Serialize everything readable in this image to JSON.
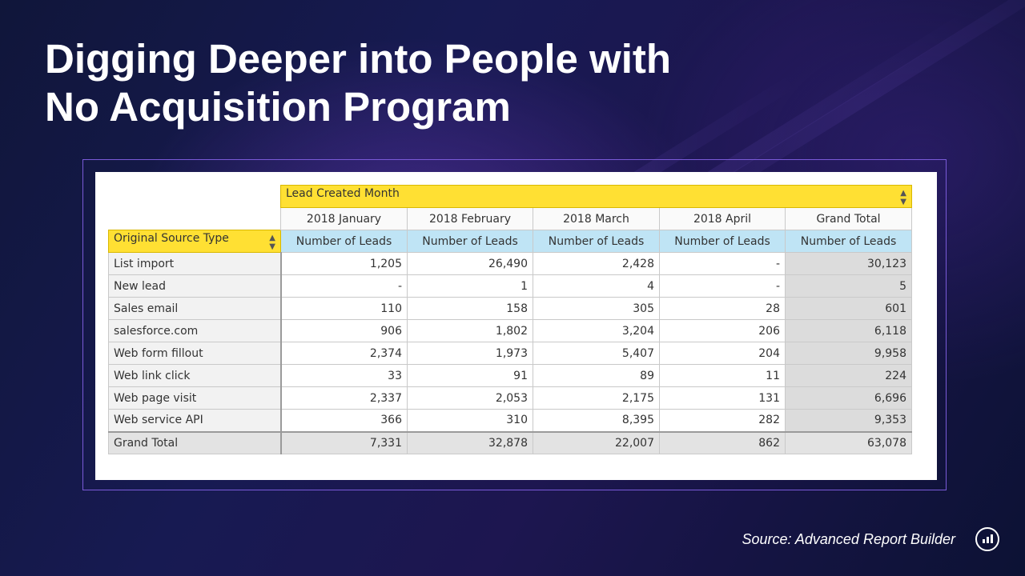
{
  "slide": {
    "title_line1": "Digging Deeper into People with",
    "title_line2": "No Acquisition Program",
    "source": "Source:  Advanced Report Builder"
  },
  "pivot": {
    "column_group_header": "Lead Created Month",
    "row_header": "Original Source Type",
    "columns": [
      "2018 January",
      "2018 February",
      "2018 March",
      "2018 April",
      "Grand Total"
    ],
    "measure": "Number of Leads",
    "rows": [
      {
        "label": "List import",
        "values": [
          "1,205",
          "26,490",
          "2,428",
          "-",
          "30,123"
        ]
      },
      {
        "label": "New lead",
        "values": [
          "-",
          "1",
          "4",
          "-",
          "5"
        ]
      },
      {
        "label": "Sales email",
        "values": [
          "110",
          "158",
          "305",
          "28",
          "601"
        ]
      },
      {
        "label": "salesforce.com",
        "values": [
          "906",
          "1,802",
          "3,204",
          "206",
          "6,118"
        ]
      },
      {
        "label": "Web form fillout",
        "values": [
          "2,374",
          "1,973",
          "5,407",
          "204",
          "9,958"
        ]
      },
      {
        "label": "Web link click",
        "values": [
          "33",
          "91",
          "89",
          "11",
          "224"
        ]
      },
      {
        "label": "Web page visit",
        "values": [
          "2,337",
          "2,053",
          "2,175",
          "131",
          "6,696"
        ]
      },
      {
        "label": "Web service API",
        "values": [
          "366",
          "310",
          "8,395",
          "282",
          "9,353"
        ]
      }
    ],
    "total_row": {
      "label": "Grand Total",
      "values": [
        "7,331",
        "32,878",
        "22,007",
        "862",
        "63,078"
      ]
    }
  },
  "icons": {
    "sort": "sort-arrows-icon",
    "logo": "marketo-logo-icon"
  },
  "colors": {
    "header_yellow": "#ffe033",
    "measure_blue": "#bfe4f5",
    "grand_total_gray": "#dcdcdc"
  }
}
